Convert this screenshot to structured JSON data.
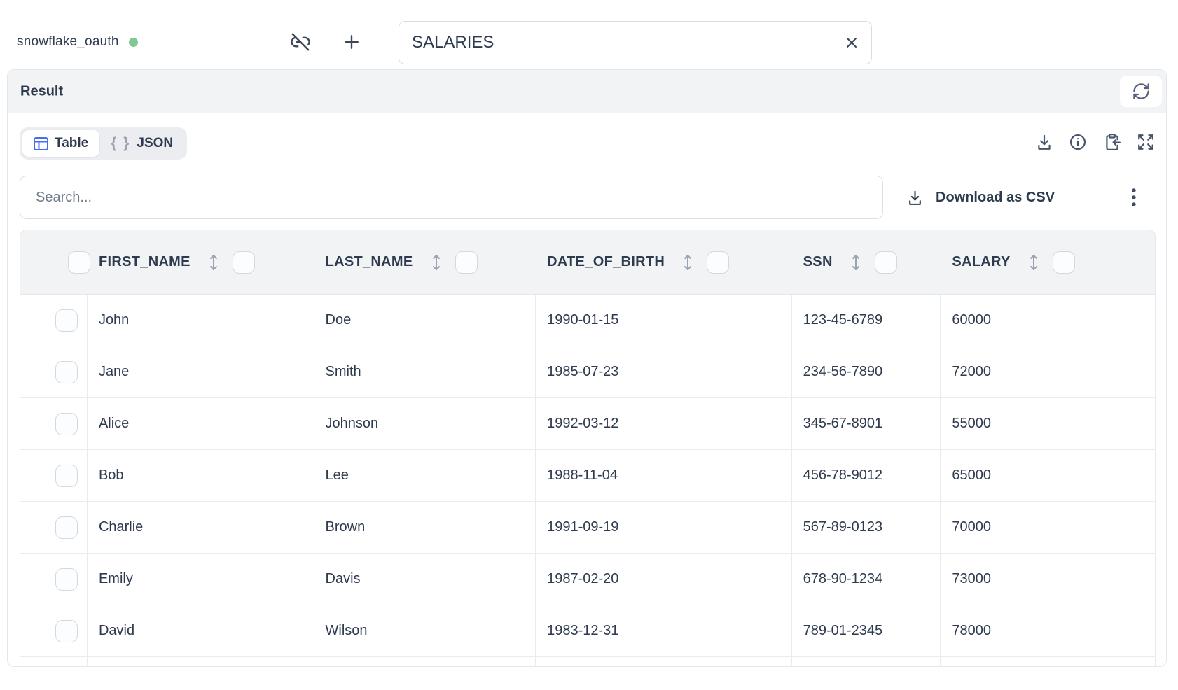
{
  "topbar": {
    "connection_label": "snowflake_oauth",
    "connection_status": "connected",
    "query_name_value": "SALARIES"
  },
  "result_panel": {
    "title": "Result",
    "tabs": {
      "table_label": "Table",
      "json_label": "JSON",
      "json_braces": "{ }"
    },
    "search_placeholder": "Search...",
    "download_csv_label": "Download as CSV"
  },
  "icons": {
    "topbar": [
      "link-off-icon",
      "plus-icon",
      "clear-x-icon"
    ],
    "result_header": [
      "refresh-icon"
    ],
    "toolbar": [
      "table-grid-icon",
      "json-braces-icon",
      "download-icon",
      "info-icon",
      "clipboard-import-icon",
      "expand-icon"
    ],
    "search_row": [
      "download-icon",
      "kebab-menu-icon"
    ],
    "table": [
      "sort-icon",
      "checkbox"
    ]
  },
  "table": {
    "columns": [
      "FIRST_NAME",
      "LAST_NAME",
      "DATE_OF_BIRTH",
      "SSN",
      "SALARY"
    ],
    "rows": [
      [
        "John",
        "Doe",
        "1990-01-15",
        "123-45-6789",
        "60000"
      ],
      [
        "Jane",
        "Smith",
        "1985-07-23",
        "234-56-7890",
        "72000"
      ],
      [
        "Alice",
        "Johnson",
        "1992-03-12",
        "345-67-8901",
        "55000"
      ],
      [
        "Bob",
        "Lee",
        "1988-11-04",
        "456-78-9012",
        "65000"
      ],
      [
        "Charlie",
        "Brown",
        "1991-09-19",
        "567-89-0123",
        "70000"
      ],
      [
        "Emily",
        "Davis",
        "1987-02-20",
        "678-90-1234",
        "73000"
      ],
      [
        "David",
        "Wilson",
        "1983-12-31",
        "789-01-2345",
        "78000"
      ]
    ]
  },
  "colors": {
    "accent_blue": "#4a6cf5",
    "status_green": "#7fc795",
    "text_dark": "#2e3a4e",
    "header_band": "#f1f3f5"
  }
}
